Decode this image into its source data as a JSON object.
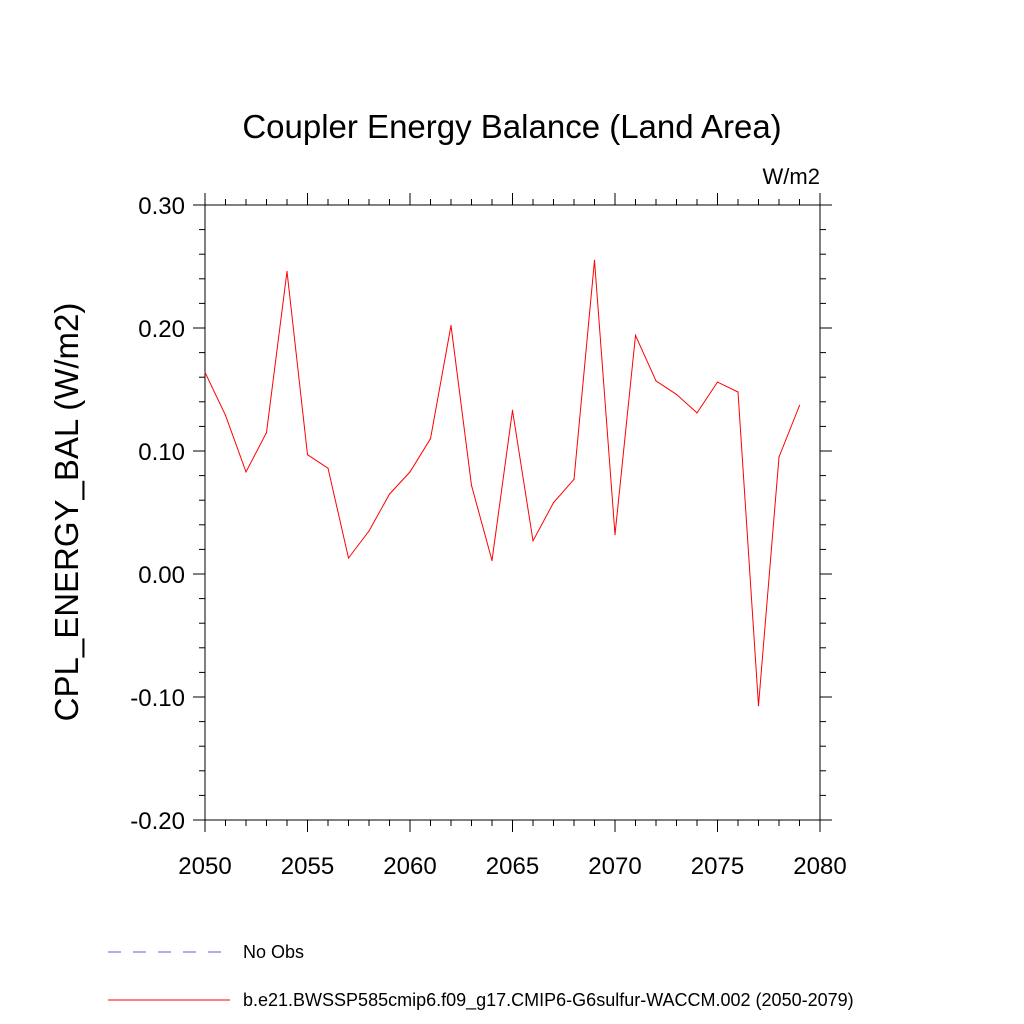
{
  "chart_data": {
    "type": "line",
    "title": "Coupler Energy Balance (Land Area)",
    "units": "W/m2",
    "ylabel": "CPL_ENERGY_BAL  (W/m2)",
    "xlabel": "",
    "xlim": [
      2050,
      2080
    ],
    "ylim": [
      -0.2,
      0.3
    ],
    "x_ticks": [
      2050,
      2055,
      2060,
      2065,
      2070,
      2075,
      2080
    ],
    "x_tick_labels": [
      "2050",
      "2055",
      "2060",
      "2065",
      "2070",
      "2075",
      "2080"
    ],
    "y_ticks": [
      -0.2,
      -0.1,
      0.0,
      0.1,
      0.2,
      0.3
    ],
    "y_tick_labels": [
      "-0.20",
      "-0.10",
      "0.00",
      "0.10",
      "0.20",
      "0.30"
    ],
    "grid": false,
    "legend_position": "bottom",
    "series": [
      {
        "name": "b.e21.BWSSP585cmip6.f09_g17.CMIP6-G6sulfur-WACCM.002 (2050-2079)",
        "color": "#ff0000",
        "style": "solid",
        "x": [
          2050,
          2051,
          2052,
          2053,
          2054,
          2055,
          2056,
          2057,
          2058,
          2059,
          2060,
          2061,
          2062,
          2063,
          2064,
          2065,
          2066,
          2067,
          2068,
          2069,
          2070,
          2071,
          2072,
          2073,
          2074,
          2075,
          2076,
          2077,
          2078,
          2079
        ],
        "values": [
          0.164,
          0.129,
          0.083,
          0.115,
          0.246,
          0.097,
          0.086,
          0.013,
          0.035,
          0.065,
          0.083,
          0.11,
          0.202,
          0.072,
          0.011,
          0.133,
          0.027,
          0.058,
          0.077,
          0.255,
          0.032,
          0.194,
          0.157,
          0.146,
          0.131,
          0.156,
          0.148,
          -0.107,
          0.095,
          0.137
        ]
      }
    ],
    "legend": [
      {
        "label": "No Obs",
        "color": "#6a5acd",
        "style": "dashed"
      },
      {
        "label": "b.e21.BWSSP585cmip6.f09_g17.CMIP6-G6sulfur-WACCM.002 (2050-2079)",
        "color": "#ff0000",
        "style": "solid"
      }
    ]
  }
}
